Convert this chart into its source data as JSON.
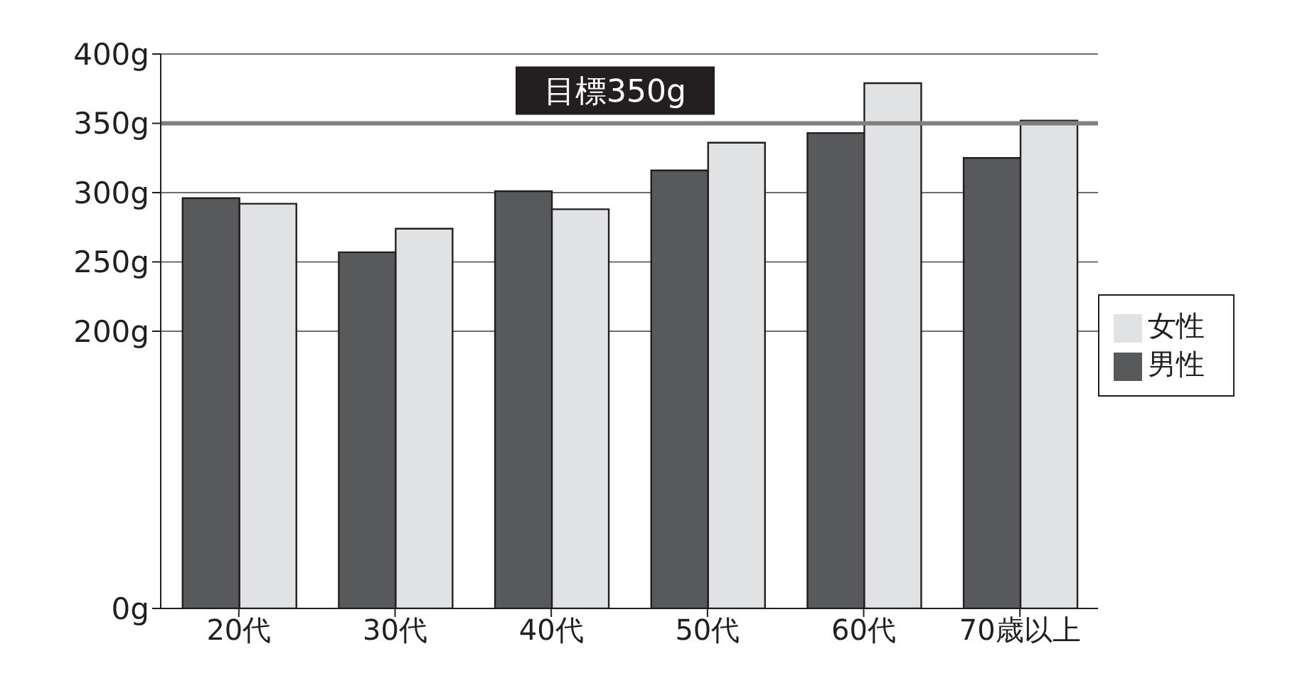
{
  "chart_data": {
    "type": "bar",
    "categories": [
      "20代",
      "30代",
      "40代",
      "50代",
      "60代",
      "70歳以上"
    ],
    "series": [
      {
        "name": "男性",
        "color": "#58595b",
        "values": [
          296,
          257,
          301,
          316,
          343,
          325
        ]
      },
      {
        "name": "女性",
        "color": "#e1e2e4",
        "values": [
          292,
          274,
          288,
          336,
          379,
          352
        ]
      }
    ],
    "ylim": [
      0,
      400
    ],
    "yticks": [
      {
        "value": 0,
        "label": "0g"
      },
      {
        "value": 200,
        "label": "200g"
      },
      {
        "value": 250,
        "label": "250g"
      },
      {
        "value": 300,
        "label": "300g"
      },
      {
        "value": 350,
        "label": "350g"
      },
      {
        "value": 400,
        "label": "400g"
      }
    ],
    "ref_lines": [
      {
        "axis": "y",
        "value": 350,
        "label": "目標350g",
        "color": "#808080"
      }
    ],
    "grid": "y",
    "legend": "right"
  }
}
